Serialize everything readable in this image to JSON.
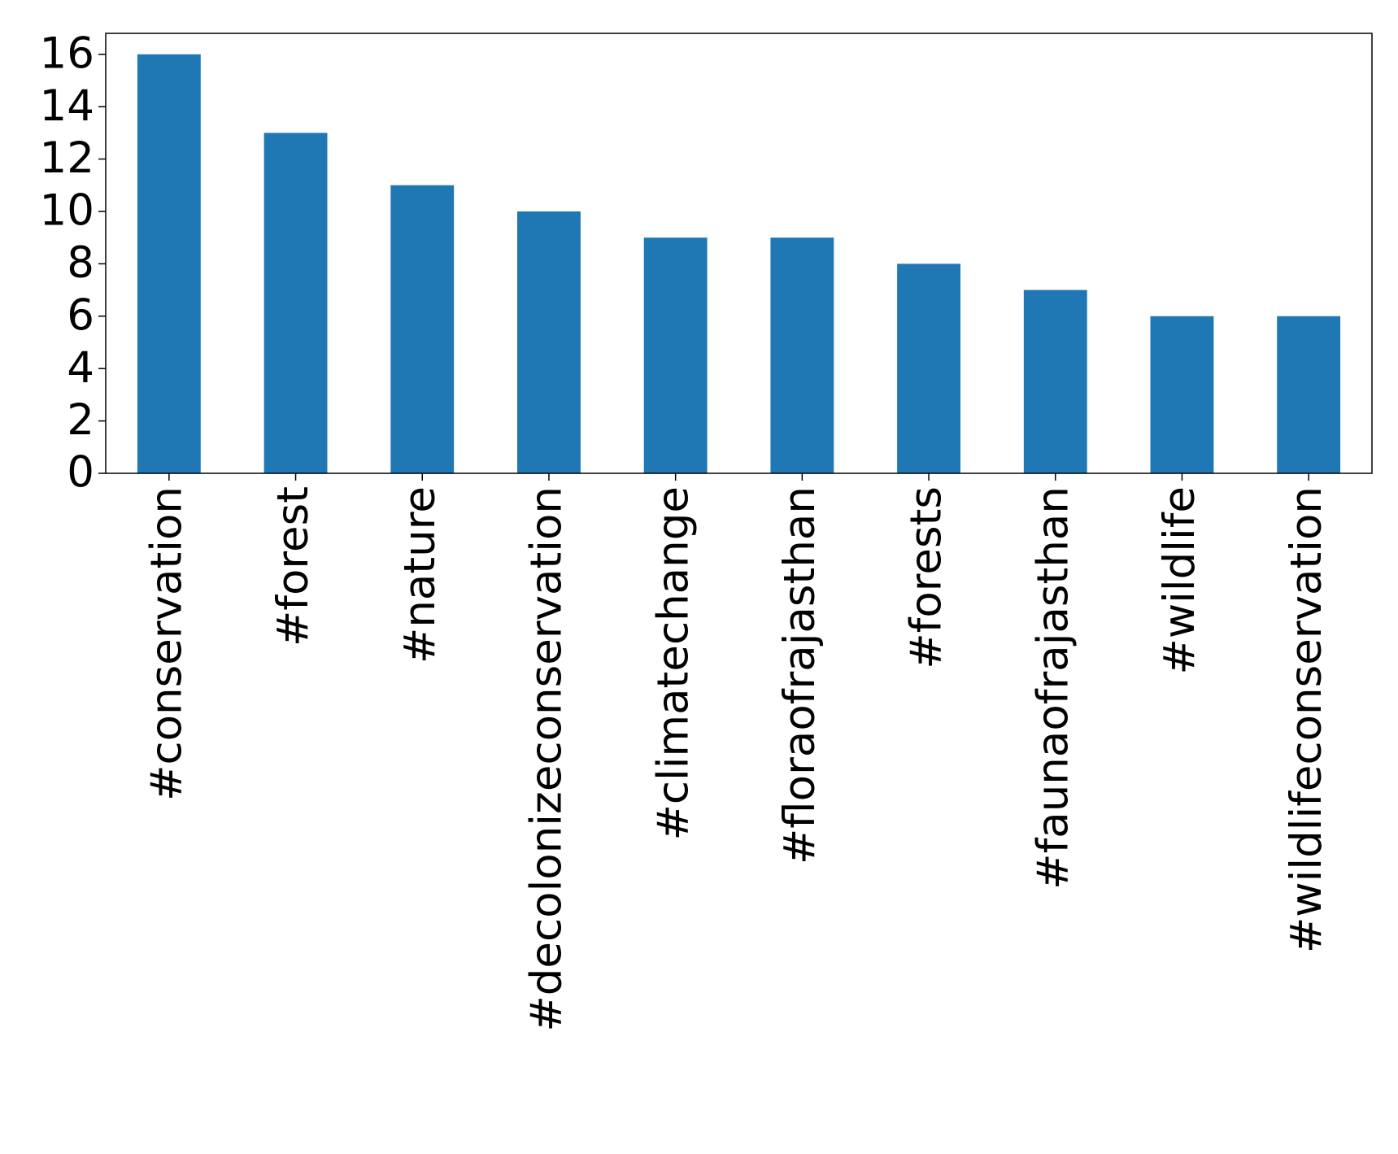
{
  "chart_data": {
    "type": "bar",
    "categories": [
      "#conservation",
      "#forest",
      "#nature",
      "#decolonizeconservation",
      "#climatechange",
      "#floraofrajasthan",
      "#forests",
      "#faunaofrajasthan",
      "#wildlife",
      "#wildlifeconservation"
    ],
    "values": [
      16,
      13,
      11,
      10,
      9,
      9,
      8,
      7,
      6,
      6
    ],
    "color": "#1f77b4",
    "ylim": [
      0,
      16.8
    ],
    "yticks": [
      0,
      2,
      4,
      6,
      8,
      10,
      12,
      14,
      16
    ],
    "grid": false
  }
}
